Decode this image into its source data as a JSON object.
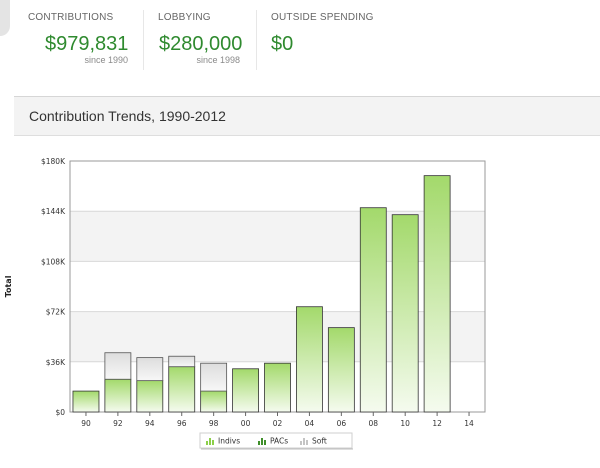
{
  "stats": [
    {
      "label": "CONTRIBUTIONS",
      "value": "$979,831",
      "since": "since 1990"
    },
    {
      "label": "LOBBYING",
      "value": "$280,000",
      "since": "since 1998"
    },
    {
      "label": "OUTSIDE SPENDING",
      "value": "$0",
      "since": ""
    }
  ],
  "trends": {
    "title": "Contribution Trends, 1990-2012"
  },
  "colors": {
    "accent_green": "#2f8a2f",
    "bar_green": "#a3d96b",
    "soft_gray": "#dcdcdc"
  },
  "chart_data": {
    "type": "bar",
    "stacked": true,
    "categories": [
      "90",
      "92",
      "94",
      "96",
      "98",
      "00",
      "02",
      "04",
      "06",
      "08",
      "10",
      "12",
      "14"
    ],
    "series": [
      {
        "name": "Indivs",
        "values": [
          15000,
          23500,
          22500,
          32500,
          15000,
          31000,
          35000,
          75500,
          60500,
          146500,
          141500,
          169500,
          0
        ]
      },
      {
        "name": "PACs",
        "values": [
          0,
          0,
          0,
          0,
          0,
          0,
          0,
          0,
          0,
          0,
          0,
          0,
          0
        ]
      },
      {
        "name": "Soft",
        "values": [
          0,
          19000,
          16500,
          7500,
          20000,
          0,
          0,
          0,
          0,
          0,
          0,
          0,
          0
        ]
      }
    ],
    "y_ticks": [
      "$0",
      "$36K",
      "$72K",
      "$108K",
      "$144K",
      "$180K"
    ],
    "ylim": [
      0,
      180000
    ],
    "ylabel": "Total",
    "xlabel": "",
    "grid": true,
    "legend_position": "bottom-center"
  }
}
